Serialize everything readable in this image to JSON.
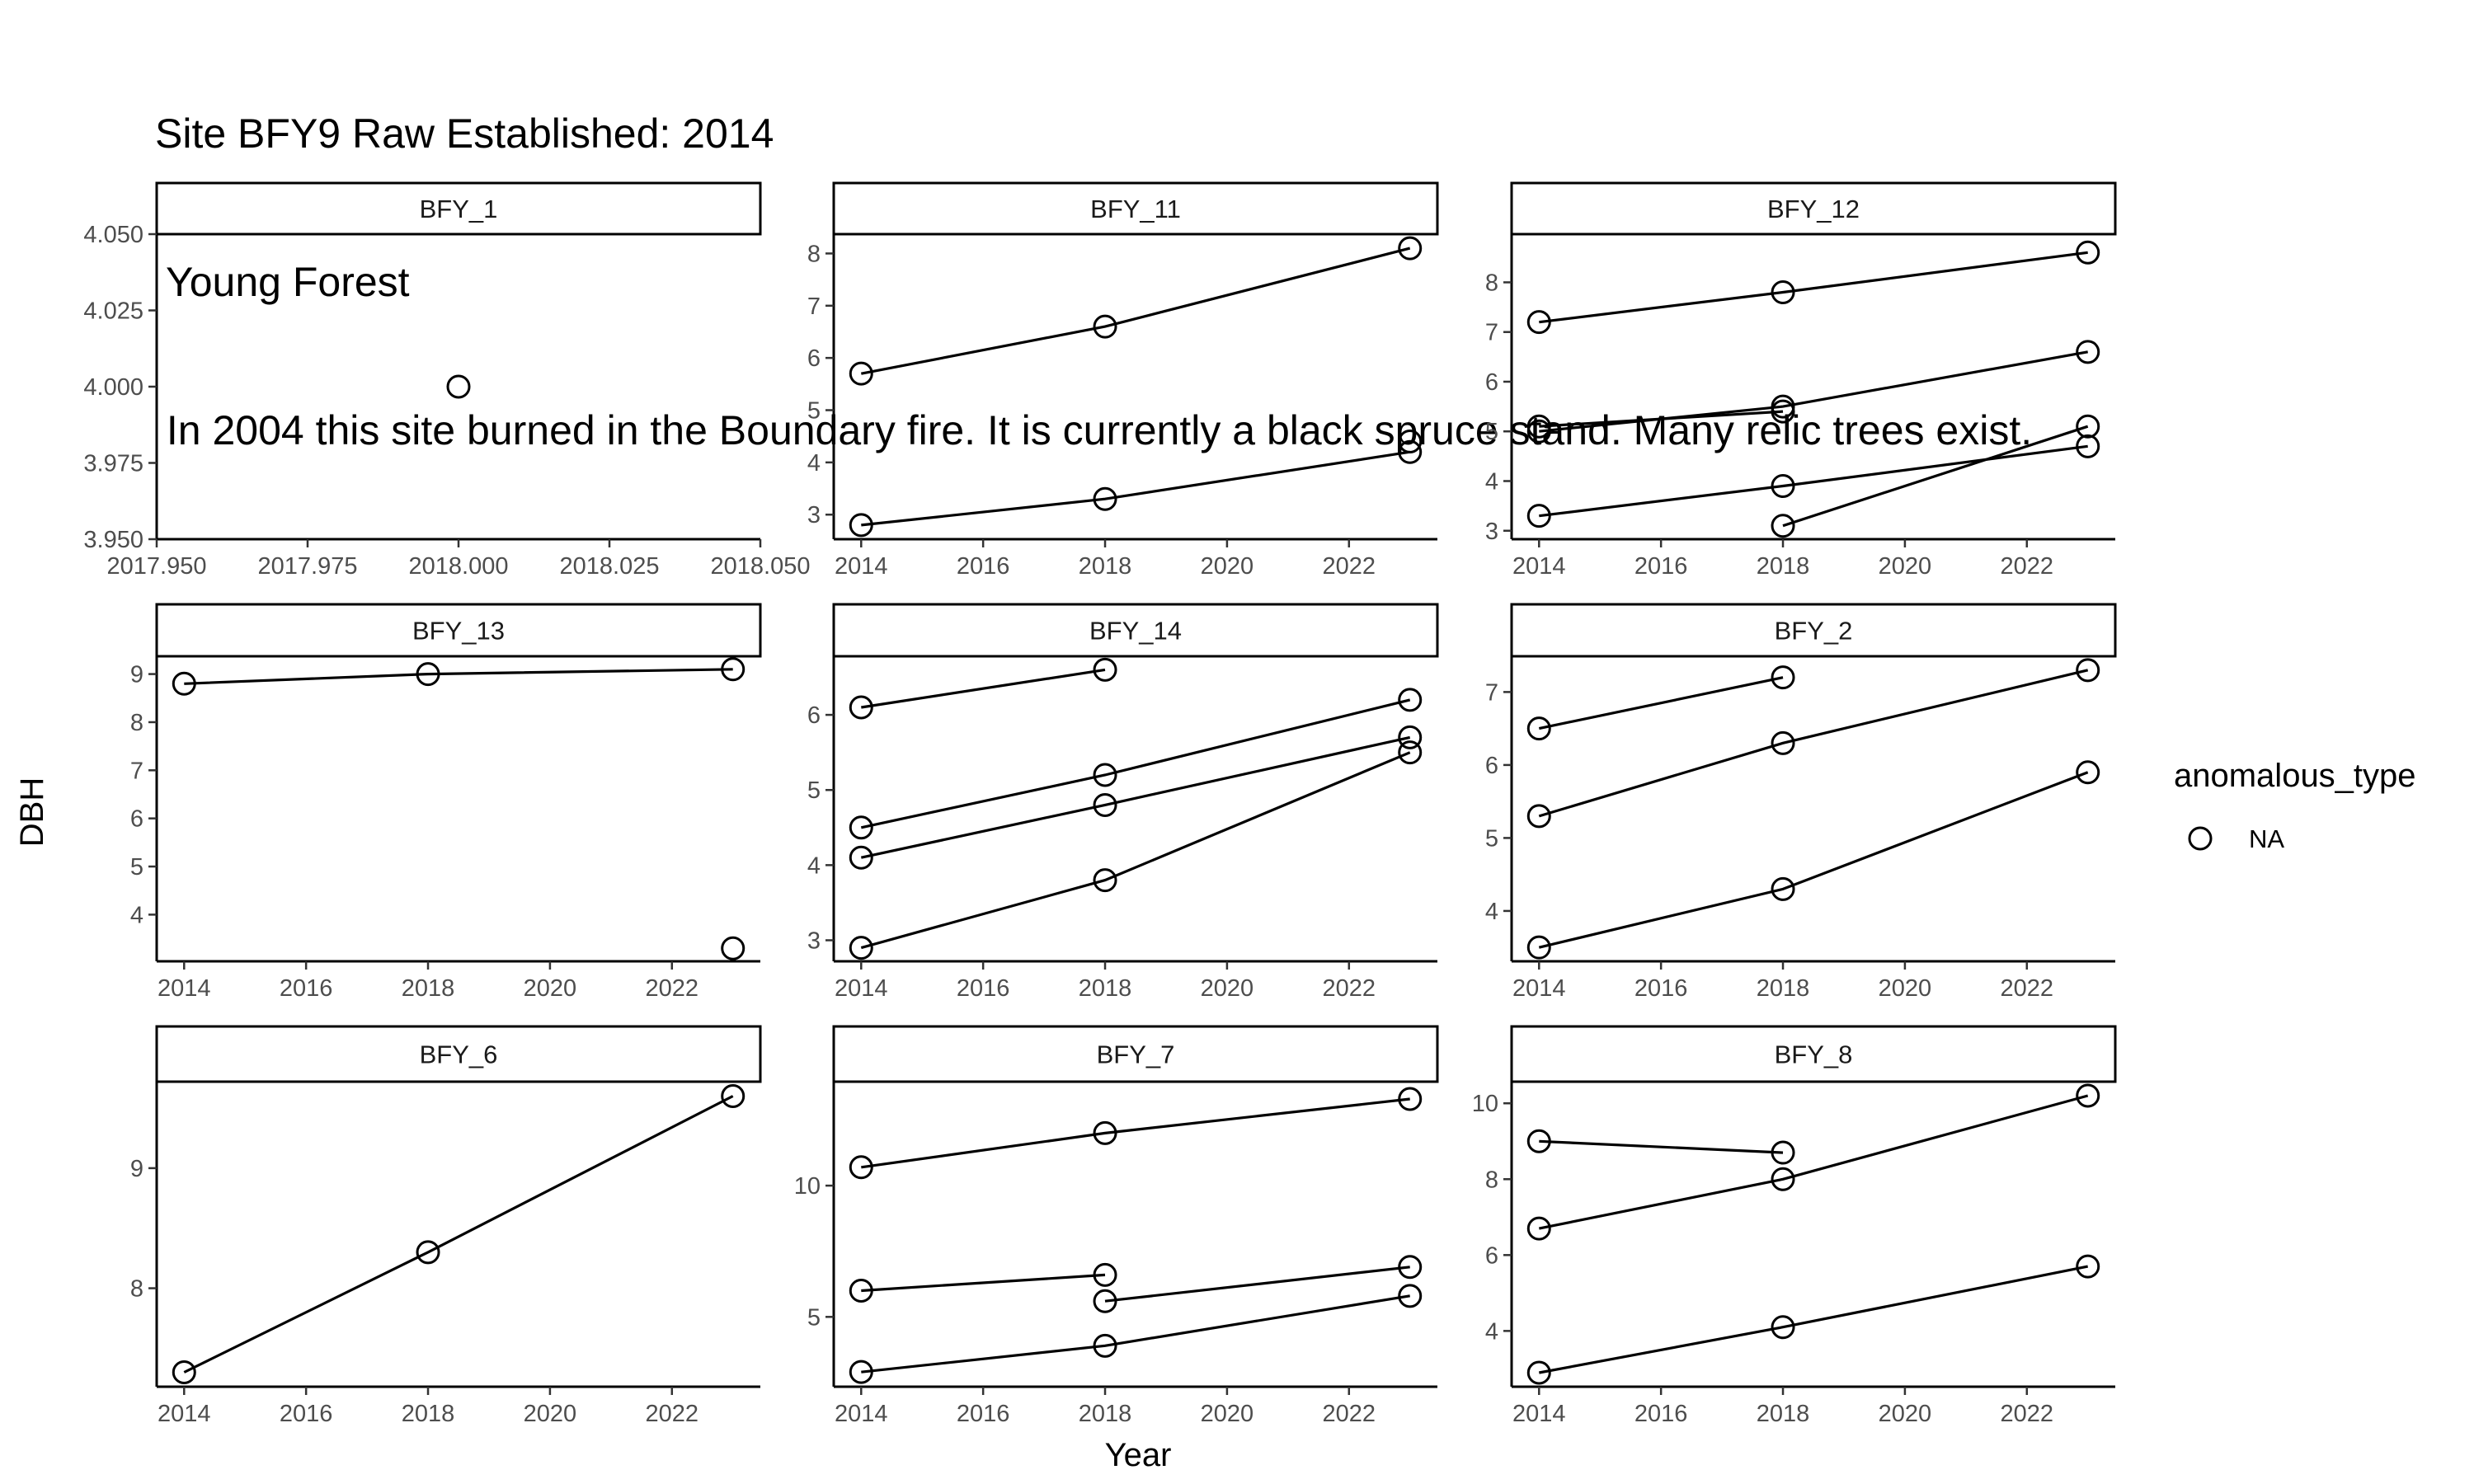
{
  "title": {
    "line1": "Site BFY9 Raw Established: 2014",
    "line2": " Young Forest",
    "line3": " In 2004 this site burned in the Boundary fire. It is currently a black spruce stand. Many relic trees exist."
  },
  "chart_data": {
    "type": "line",
    "facet_type": "facet_wrap",
    "xlabel": "Year",
    "ylabel": "DBH",
    "legend": {
      "title": "anomalous_type",
      "entries": [
        "NA"
      ],
      "position": "right",
      "marker": "open circle"
    },
    "grid": false,
    "panels": [
      {
        "name": "BFY_1",
        "xlim": [
          2017.95,
          2018.05
        ],
        "ylim": [
          3.95,
          4.05
        ],
        "xticks": [
          2017.95,
          2017.975,
          2018.0,
          2018.025,
          2018.05
        ],
        "xtick_labels": [
          "2017.950",
          "2017.975",
          "2018.000",
          "2018.025",
          "2018.050"
        ],
        "yticks": [
          3.95,
          3.975,
          4.0,
          4.025,
          4.05
        ],
        "ytick_labels": [
          "3.950",
          "3.975",
          "4.000",
          "4.025",
          "4.050"
        ],
        "series": [
          {
            "x": [
              2018
            ],
            "y": [
              4.0
            ]
          }
        ]
      },
      {
        "name": "BFY_11",
        "xlim": [
          2013.55,
          2023.45
        ],
        "ylim": [
          2.53,
          8.37
        ],
        "xticks": [
          2014,
          2016,
          2018,
          2020,
          2022
        ],
        "xtick_labels": [
          "2014",
          "2016",
          "2018",
          "2020",
          "2022"
        ],
        "yticks": [
          3,
          4,
          5,
          6,
          7,
          8
        ],
        "ytick_labels": [
          "3",
          "4",
          "5",
          "6",
          "7",
          "8"
        ],
        "series": [
          {
            "x": [
              2014,
              2018,
              2023
            ],
            "y": [
              5.7,
              6.6,
              8.1
            ]
          },
          {
            "x": [
              2014,
              2018,
              2023
            ],
            "y": [
              2.8,
              3.3,
              4.2
            ]
          },
          {
            "x": [
              2023
            ],
            "y": [
              4.4
            ]
          }
        ]
      },
      {
        "name": "BFY_12",
        "xlim": [
          2013.55,
          2023.45
        ],
        "ylim": [
          2.83,
          8.97
        ],
        "xticks": [
          2014,
          2016,
          2018,
          2020,
          2022
        ],
        "xtick_labels": [
          "2014",
          "2016",
          "2018",
          "2020",
          "2022"
        ],
        "yticks": [
          3,
          4,
          5,
          6,
          7,
          8
        ],
        "ytick_labels": [
          "3",
          "4",
          "5",
          "6",
          "7",
          "8"
        ],
        "series": [
          {
            "x": [
              2014,
              2018,
              2023
            ],
            "y": [
              7.2,
              7.8,
              8.6
            ]
          },
          {
            "x": [
              2014,
              2018,
              2023
            ],
            "y": [
              5.0,
              5.5,
              6.6
            ]
          },
          {
            "x": [
              2014,
              2018
            ],
            "y": [
              5.1,
              5.4
            ]
          },
          {
            "x": [
              2014,
              2018,
              2023
            ],
            "y": [
              3.3,
              3.9,
              4.7
            ]
          },
          {
            "x": [
              2018,
              2023
            ],
            "y": [
              3.1,
              5.1
            ]
          }
        ]
      },
      {
        "name": "BFY_13",
        "xlim": [
          2013.55,
          2023.45
        ],
        "ylim": [
          3.03,
          9.37
        ],
        "xticks": [
          2014,
          2016,
          2018,
          2020,
          2022
        ],
        "xtick_labels": [
          "2014",
          "2016",
          "2018",
          "2020",
          "2022"
        ],
        "yticks": [
          4,
          5,
          6,
          7,
          8,
          9
        ],
        "ytick_labels": [
          "4",
          "5",
          "6",
          "7",
          "8",
          "9"
        ],
        "series": [
          {
            "x": [
              2014,
              2018,
              2023
            ],
            "y": [
              8.8,
              9.0,
              9.1
            ]
          },
          {
            "x": [
              2023
            ],
            "y": [
              3.3
            ]
          }
        ]
      },
      {
        "name": "BFY_14",
        "xlim": [
          2013.55,
          2023.45
        ],
        "ylim": [
          2.72,
          6.78
        ],
        "xticks": [
          2014,
          2016,
          2018,
          2020,
          2022
        ],
        "xtick_labels": [
          "2014",
          "2016",
          "2018",
          "2020",
          "2022"
        ],
        "yticks": [
          3,
          4,
          5,
          6
        ],
        "ytick_labels": [
          "3",
          "4",
          "5",
          "6"
        ],
        "series": [
          {
            "x": [
              2014,
              2018
            ],
            "y": [
              6.1,
              6.6
            ]
          },
          {
            "x": [
              2014,
              2018,
              2023
            ],
            "y": [
              4.5,
              5.2,
              6.2
            ]
          },
          {
            "x": [
              2014,
              2018,
              2023
            ],
            "y": [
              4.1,
              4.8,
              5.7
            ]
          },
          {
            "x": [
              2014,
              2018,
              2023
            ],
            "y": [
              2.9,
              3.8,
              5.5
            ]
          }
        ]
      },
      {
        "name": "BFY_2",
        "xlim": [
          2013.55,
          2023.45
        ],
        "ylim": [
          3.31,
          7.49
        ],
        "xticks": [
          2014,
          2016,
          2018,
          2020,
          2022
        ],
        "xtick_labels": [
          "2014",
          "2016",
          "2018",
          "2020",
          "2022"
        ],
        "yticks": [
          4,
          5,
          6,
          7
        ],
        "ytick_labels": [
          "4",
          "5",
          "6",
          "7"
        ],
        "series": [
          {
            "x": [
              2014,
              2018
            ],
            "y": [
              6.5,
              7.2
            ]
          },
          {
            "x": [
              2014,
              2018,
              2023
            ],
            "y": [
              5.3,
              6.3,
              7.3
            ]
          },
          {
            "x": [
              2014,
              2018,
              2023
            ],
            "y": [
              3.5,
              4.3,
              5.9
            ]
          }
        ]
      },
      {
        "name": "BFY_6",
        "xlim": [
          2013.55,
          2023.45
        ],
        "ylim": [
          7.18,
          9.72
        ],
        "xticks": [
          2014,
          2016,
          2018,
          2020,
          2022
        ],
        "xtick_labels": [
          "2014",
          "2016",
          "2018",
          "2020",
          "2022"
        ],
        "yticks": [
          8,
          9
        ],
        "ytick_labels": [
          "8",
          "9"
        ],
        "series": [
          {
            "x": [
              2014,
              2018,
              2023
            ],
            "y": [
              7.3,
              8.3,
              9.6
            ]
          }
        ]
      },
      {
        "name": "BFY_7",
        "xlim": [
          2013.55,
          2023.45
        ],
        "ylim": [
          2.34,
          13.96
        ],
        "xticks": [
          2014,
          2016,
          2018,
          2020,
          2022
        ],
        "xtick_labels": [
          "2014",
          "2016",
          "2018",
          "2020",
          "2022"
        ],
        "yticks": [
          5,
          10
        ],
        "ytick_labels": [
          "5",
          "10"
        ],
        "series": [
          {
            "x": [
              2014,
              2018,
              2023
            ],
            "y": [
              10.7,
              12.0,
              13.3
            ]
          },
          {
            "x": [
              2014,
              2018
            ],
            "y": [
              6.0,
              6.6
            ]
          },
          {
            "x": [
              2018,
              2023
            ],
            "y": [
              5.6,
              6.9
            ]
          },
          {
            "x": [
              2014,
              2018,
              2023
            ],
            "y": [
              2.9,
              3.9,
              5.8
            ]
          }
        ]
      },
      {
        "name": "BFY_8",
        "xlim": [
          2013.55,
          2023.45
        ],
        "ylim": [
          2.53,
          10.57
        ],
        "xticks": [
          2014,
          2016,
          2018,
          2020,
          2022
        ],
        "xtick_labels": [
          "2014",
          "2016",
          "2018",
          "2020",
          "2022"
        ],
        "yticks": [
          4,
          6,
          8,
          10
        ],
        "ytick_labels": [
          "4",
          "6",
          "8",
          "10"
        ],
        "series": [
          {
            "x": [
              2014,
              2018
            ],
            "y": [
              9.0,
              8.7
            ]
          },
          {
            "x": [
              2014,
              2018,
              2023
            ],
            "y": [
              6.7,
              8.0,
              10.2
            ]
          },
          {
            "x": [
              2014,
              2018,
              2023
            ],
            "y": [
              2.9,
              4.1,
              5.7
            ]
          }
        ]
      }
    ]
  }
}
